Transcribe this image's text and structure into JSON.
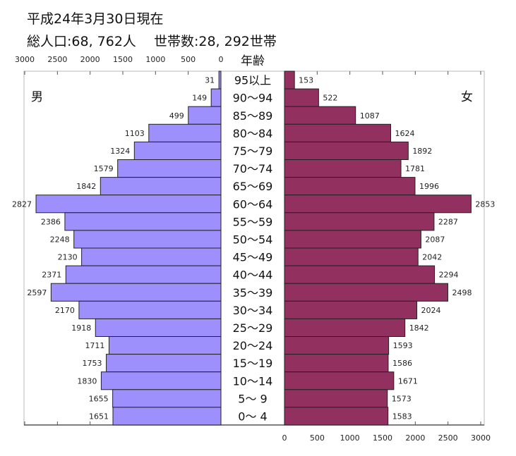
{
  "header": {
    "date_line": "平成24年3月30日現在",
    "total_line": "総人口:68, 762人　 世帯数:28, 292世帯"
  },
  "chart_data": {
    "type": "bar",
    "orientation": "horizontal population pyramid",
    "center_label": "年齢",
    "left_label": "男",
    "right_label": "女",
    "categories": [
      "95以上",
      "90～94",
      "85～89",
      "80～84",
      "75～79",
      "70～74",
      "65～69",
      "60～64",
      "55～59",
      "50～54",
      "45～49",
      "40～44",
      "35～39",
      "30～34",
      "25～29",
      "20～24",
      "15～19",
      "10～14",
      "5～ 9",
      "0～ 4"
    ],
    "series": [
      {
        "name": "男",
        "color": "#9d8ffc",
        "values": [
          31,
          149,
          499,
          1103,
          1324,
          1579,
          1842,
          2827,
          2386,
          2248,
          2130,
          2371,
          2597,
          2170,
          1918,
          1711,
          1753,
          1830,
          1655,
          1651
        ]
      },
      {
        "name": "女",
        "color": "#923060",
        "values": [
          153,
          522,
          1087,
          1624,
          1892,
          1781,
          1996,
          2853,
          2287,
          2087,
          2042,
          2294,
          2498,
          2024,
          1842,
          1593,
          1586,
          1671,
          1573,
          1583
        ]
      }
    ],
    "xlim": [
      0,
      3000
    ],
    "left_ticks": [
      "3000",
      "2500",
      "2000",
      "1500",
      "1000",
      "500",
      "0"
    ],
    "right_ticks": [
      "0",
      "500",
      "1000",
      "1500",
      "2000",
      "2500",
      "3000"
    ],
    "grid": false
  }
}
